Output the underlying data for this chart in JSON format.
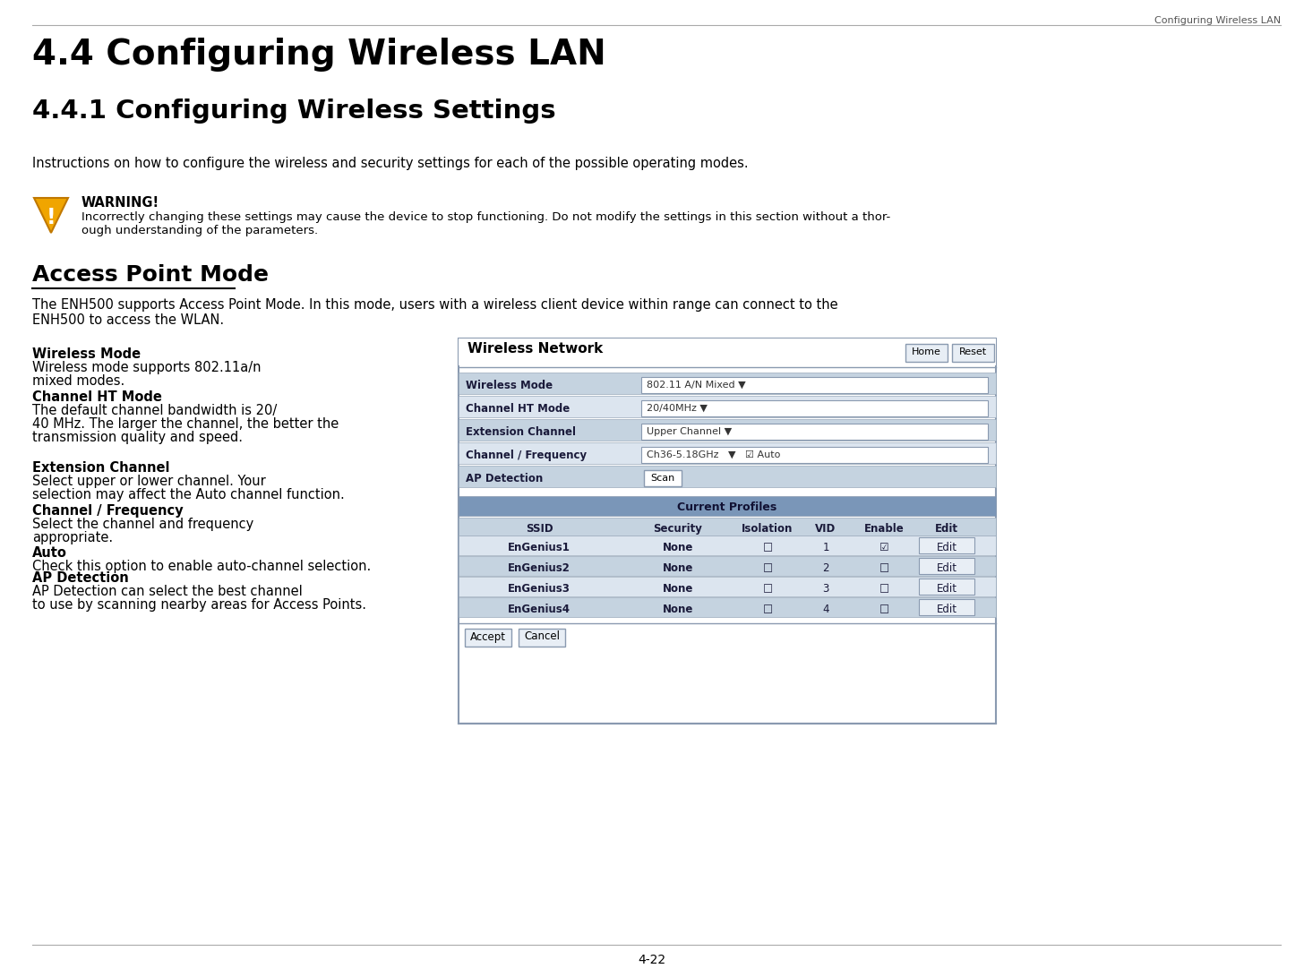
{
  "page_header": "Configuring Wireless LAN",
  "title1": "4.4 Configuring Wireless LAN",
  "title2": "4.4.1 Configuring Wireless Settings",
  "intro_text": "Instructions on how to configure the wireless and security settings for each of the possible operating modes.",
  "warning_title": "WARNING!",
  "warning_text": "Incorrectly changing these settings may cause the device to stop functioning. Do not modify the settings in this section without a thor-\nough understanding of the parameters.",
  "section_title": "Access Point Mode",
  "section_intro": "The ENH500 supports Access Point Mode. In this mode, users with a wireless client device within range can connect to the\nENH500 to access the WLAN.",
  "left_items": [
    {
      "label": "Wireless Mode",
      "text": "Wireless mode supports 802.11a/n\nmixed modes."
    },
    {
      "label": "Channel HT Mode",
      "text": "The default channel bandwidth is 20/\n40 MHz. The larger the channel, the better the\ntransmission quality and speed."
    },
    {
      "label": "Extension Channel",
      "text": "Select upper or lower channel. Your\nselection may affect the Auto channel function."
    },
    {
      "label": "Channel / Frequency",
      "text": "Select the channel and frequency\nappropriate."
    },
    {
      "label": "Auto",
      "text": "Check this option to enable auto-channel selection."
    },
    {
      "label": "AP Detection",
      "text": "AP Detection can select the best channel\nto use by scanning nearby areas for Access Points."
    }
  ],
  "panel_title": "Wireless Network",
  "panel_bg": "#8fa8c8",
  "panel_header_bg": "#7a96b8",
  "panel_row_bg1": "#c5d3e0",
  "panel_row_bg2": "#dce5ef",
  "panel_border": "#5a7aa0",
  "panel_fields": [
    {
      "label": "Wireless Mode",
      "value": "802.11 A/N Mixed ▼"
    },
    {
      "label": "Channel HT Mode",
      "value": "20/40MHz ▼"
    },
    {
      "label": "Extension Channel",
      "value": "Upper Channel ▼"
    },
    {
      "label": "Channel / Frequency",
      "value": "Ch36-5.18GHz   ▼   ☑ Auto"
    },
    {
      "label": "AP Detection",
      "value": "Scan"
    }
  ],
  "profiles_header": "Current Profiles",
  "profiles_cols": [
    "SSID",
    "Security",
    "Isolation",
    "VID",
    "Enable",
    "Edit"
  ],
  "profiles_rows": [
    [
      "EnGenius1",
      "None",
      "□",
      "1",
      "☑",
      "Edit"
    ],
    [
      "EnGenius2",
      "None",
      "□",
      "2",
      "□",
      "Edit"
    ],
    [
      "EnGenius3",
      "None",
      "□",
      "3",
      "□",
      "Edit"
    ],
    [
      "EnGenius4",
      "None",
      "□",
      "4",
      "□",
      "Edit"
    ]
  ],
  "bottom_buttons": [
    "Accept",
    "Cancel"
  ],
  "page_number": "4-22",
  "bg_color": "#ffffff",
  "text_color": "#000000",
  "header_color": "#555555",
  "panel_text_dark": "#1a1a3a",
  "button_bg": "#e0e8f0",
  "button_border": "#8a9ab0"
}
